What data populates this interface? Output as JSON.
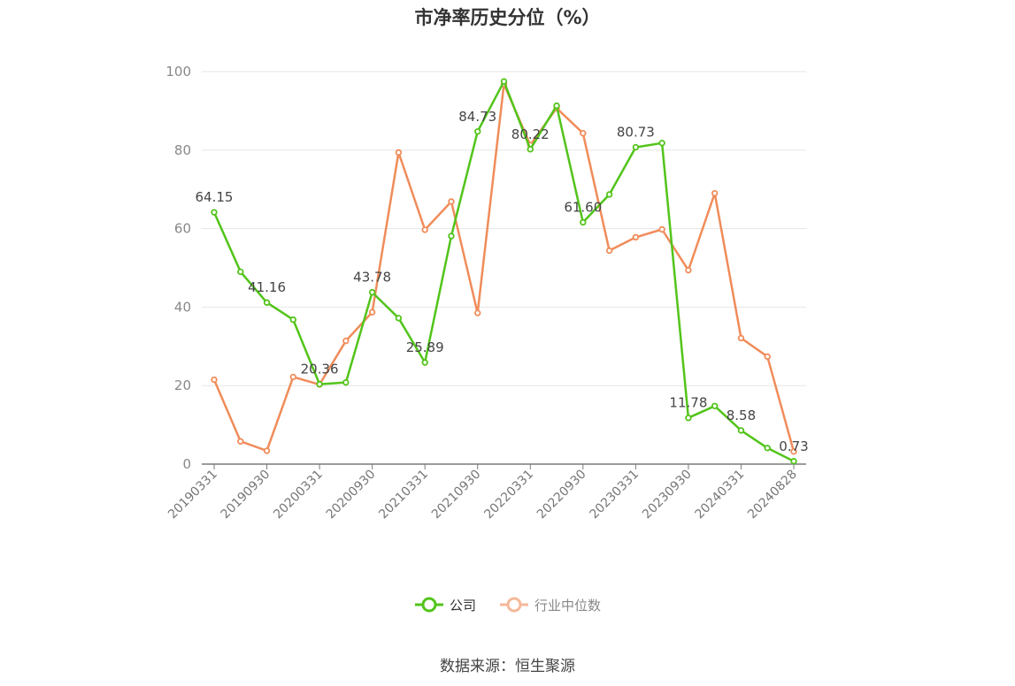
{
  "colors": {
    "company": "#52c41a",
    "industry": "#f08c5a",
    "grid": "#e6e6e6",
    "axis": "#7a7a7a",
    "text": "#333333"
  },
  "chart_data": {
    "type": "line",
    "title": "市净率历史分位（%）",
    "ylim": [
      0,
      100
    ],
    "yticks": [
      0,
      20,
      40,
      60,
      80,
      100
    ],
    "x": [
      "20190331",
      "20190630",
      "20190930",
      "20191231",
      "20200331",
      "20200630",
      "20200930",
      "20201231",
      "20210331",
      "20210630",
      "20210930",
      "20211231",
      "20220331",
      "20220630",
      "20220930",
      "20221231",
      "20230331",
      "20230630",
      "20230930",
      "20231231",
      "20240331",
      "20240630",
      "20240828"
    ],
    "xtick_labels": [
      "20190331",
      "20190930",
      "20200331",
      "20200930",
      "20210331",
      "20210930",
      "20220331",
      "20220930",
      "20230331",
      "20230930",
      "20240331",
      "20240828"
    ],
    "grid": true,
    "legend_position": "bottom",
    "series": [
      {
        "name": "公司",
        "values": [
          64.15,
          49.0,
          41.16,
          36.8,
          20.36,
          20.8,
          43.78,
          37.2,
          25.89,
          58.1,
          84.73,
          97.5,
          80.22,
          91.3,
          61.6,
          68.7,
          80.73,
          81.8,
          11.78,
          14.8,
          8.58,
          4.1,
          0.73
        ],
        "labels": {
          "0": "64.15",
          "2": "41.16",
          "4": "20.36",
          "6": "43.78",
          "8": "25.89",
          "10": "84.73",
          "12": "80.22",
          "14": "61.60",
          "16": "80.73",
          "18": "11.78",
          "20": "8.58",
          "22": "0.73"
        }
      },
      {
        "name": "行业中位数",
        "values": [
          21.5,
          5.8,
          3.4,
          22.2,
          20.3,
          31.4,
          38.7,
          79.4,
          59.7,
          66.9,
          38.5,
          96.8,
          81.3,
          90.7,
          84.3,
          54.4,
          57.8,
          59.8,
          49.4,
          69.0,
          32.1,
          27.4,
          3.2
        ]
      }
    ]
  },
  "legend": {
    "company": "公司",
    "industry": "行业中位数"
  },
  "source": "数据来源：恒生聚源"
}
